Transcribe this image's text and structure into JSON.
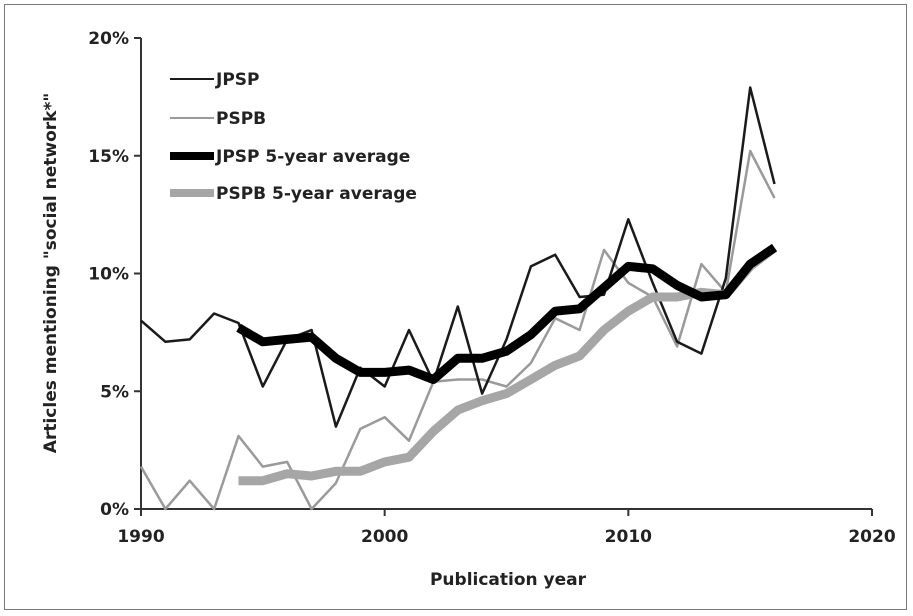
{
  "chart_data": {
    "type": "line",
    "xlabel": "Publication year",
    "ylabel": "Articles mentioning \"social network*\"",
    "xlim": [
      1990,
      2020
    ],
    "ylim": [
      0,
      20
    ],
    "x_ticks": [
      "1990",
      "2000",
      "2010",
      "2020"
    ],
    "y_ticks": [
      "0%",
      "5%",
      "10%",
      "15%",
      "20%"
    ],
    "legend_position": "top-left",
    "grid": false,
    "series": [
      {
        "name": "JPSP",
        "color": "#1a1a1a",
        "width": "thin",
        "x": [
          1990,
          1991,
          1992,
          1993,
          1994,
          1995,
          1996,
          1997,
          1998,
          1999,
          2000,
          2001,
          2002,
          2003,
          2004,
          2005,
          2006,
          2007,
          2008,
          2009,
          2010,
          2011,
          2012,
          2013,
          2014,
          2015,
          2016
        ],
        "values": [
          8.0,
          7.1,
          7.2,
          8.3,
          7.9,
          5.2,
          7.2,
          7.6,
          3.5,
          6.0,
          5.2,
          7.6,
          5.4,
          8.6,
          4.9,
          7.2,
          10.3,
          10.8,
          9.0,
          9.1,
          12.3,
          9.6,
          7.1,
          6.6,
          9.8,
          17.9,
          13.8
        ]
      },
      {
        "name": "PSPB",
        "color": "#9a9a9a",
        "width": "thin",
        "x": [
          1990,
          1991,
          1992,
          1993,
          1994,
          1995,
          1996,
          1997,
          1998,
          1999,
          2000,
          2001,
          2002,
          2003,
          2004,
          2005,
          2006,
          2007,
          2008,
          2009,
          2010,
          2011,
          2012,
          2013,
          2014,
          2015,
          2016
        ],
        "values": [
          1.8,
          0.0,
          1.2,
          0.0,
          3.1,
          1.8,
          2.0,
          0.0,
          1.1,
          3.4,
          3.9,
          2.9,
          5.4,
          5.5,
          5.5,
          5.2,
          6.2,
          8.1,
          7.6,
          11.0,
          9.6,
          9.0,
          6.9,
          10.4,
          9.2,
          15.2,
          13.2
        ]
      },
      {
        "name": "JPSP 5-year average",
        "color": "#000000",
        "width": "thick",
        "x": [
          1994,
          1995,
          1996,
          1997,
          1998,
          1999,
          2000,
          2001,
          2002,
          2003,
          2004,
          2005,
          2006,
          2007,
          2008,
          2009,
          2010,
          2011,
          2012,
          2013,
          2014,
          2015,
          2016
        ],
        "values": [
          7.7,
          7.1,
          7.2,
          7.3,
          6.4,
          5.8,
          5.8,
          5.9,
          5.5,
          6.4,
          6.4,
          6.7,
          7.4,
          8.4,
          8.5,
          9.4,
          10.3,
          10.2,
          9.5,
          9.0,
          9.1,
          10.4,
          11.1
        ]
      },
      {
        "name": "PSPB 5-year average",
        "color": "#a6a6a6",
        "width": "thick",
        "x": [
          1994,
          1995,
          1996,
          1997,
          1998,
          1999,
          2000,
          2001,
          2002,
          2003,
          2004,
          2005,
          2006,
          2007,
          2008,
          2009,
          2010,
          2011,
          2012,
          2013,
          2014,
          2015,
          2016
        ],
        "values": [
          1.2,
          1.2,
          1.5,
          1.4,
          1.6,
          1.6,
          2.0,
          2.2,
          3.3,
          4.2,
          4.6,
          4.9,
          5.5,
          6.1,
          6.5,
          7.6,
          8.4,
          9.0,
          9.0,
          9.2,
          9.1,
          10.3,
          11.1
        ]
      }
    ]
  }
}
